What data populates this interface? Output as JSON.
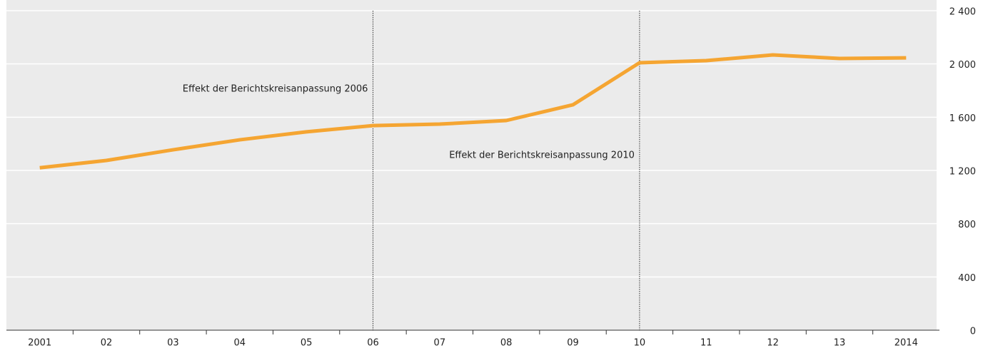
{
  "chart_data": {
    "type": "line",
    "categories": [
      "2001",
      "02",
      "03",
      "04",
      "05",
      "06",
      "07",
      "08",
      "09",
      "10",
      "11",
      "12",
      "13",
      "2014"
    ],
    "series": [
      {
        "color": "#f5a532",
        "values": [
          1220,
          1275,
          1355,
          1430,
          1490,
          1537,
          1548,
          1575,
          1693,
          2009,
          2025,
          2068,
          2041,
          2046
        ]
      }
    ],
    "ylim": [
      0,
      2400
    ],
    "yticks": [
      0,
      400,
      800,
      {
        "value": 1200,
        "label": "1 200"
      },
      {
        "value": 1600,
        "label": "1 600"
      },
      {
        "value": 2000,
        "label": "2 000"
      },
      {
        "value": 2400,
        "label": "2 400"
      }
    ],
    "grid": true,
    "annotations": [
      {
        "text": "Effekt der Berichtskreisanpassung 2006",
        "x": "06"
      },
      {
        "text": "Effekt der Berichtskreisanpassung 2010",
        "x": "10"
      }
    ]
  }
}
